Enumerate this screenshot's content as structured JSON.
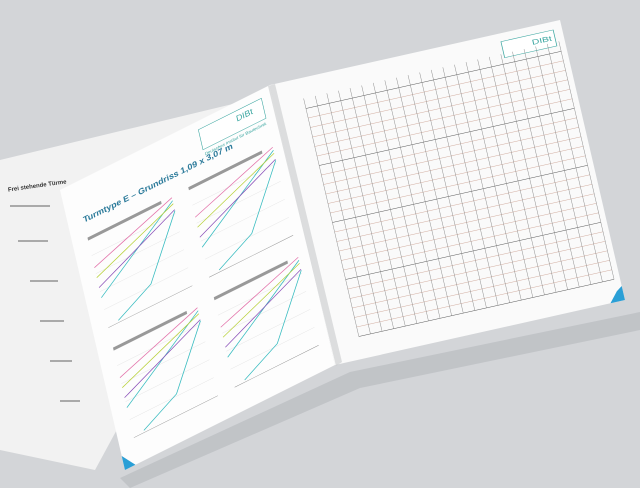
{
  "left_page": {
    "section": "Frei stehende Türme",
    "heading": "Turmtype E – Grundriss 1,09 x 3,07 m",
    "logo": "DIBt",
    "logo_caption": "Deutsches Institut für Bautechnik"
  },
  "right_page": {
    "logo": "DIBt"
  }
}
